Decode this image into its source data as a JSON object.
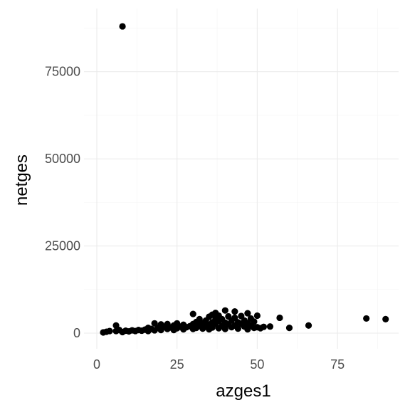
{
  "chart_data": {
    "type": "scatter",
    "title": "",
    "xlabel": "azges1",
    "ylabel": "netges",
    "xlim": [
      0,
      90
    ],
    "ylim": [
      0,
      88000
    ],
    "x_ticks": [
      0,
      25,
      50,
      75
    ],
    "y_ticks": [
      0,
      25000,
      50000,
      75000
    ],
    "x_tick_labels": [
      "0",
      "25",
      "50",
      "75"
    ],
    "y_tick_labels": [
      "0",
      "25000",
      "50000",
      "75000"
    ],
    "grid": true,
    "legend": "none",
    "point_color": "#000000",
    "points": [
      {
        "x": 8,
        "y": 88000
      },
      {
        "x": 2,
        "y": 200
      },
      {
        "x": 3,
        "y": 400
      },
      {
        "x": 4,
        "y": 600
      },
      {
        "x": 6,
        "y": 2200
      },
      {
        "x": 6,
        "y": 600
      },
      {
        "x": 7,
        "y": 900
      },
      {
        "x": 8,
        "y": 300
      },
      {
        "x": 9,
        "y": 700
      },
      {
        "x": 10,
        "y": 500
      },
      {
        "x": 11,
        "y": 800
      },
      {
        "x": 12,
        "y": 600
      },
      {
        "x": 13,
        "y": 900
      },
      {
        "x": 14,
        "y": 700
      },
      {
        "x": 15,
        "y": 1000
      },
      {
        "x": 16,
        "y": 1500
      },
      {
        "x": 16,
        "y": 600
      },
      {
        "x": 17,
        "y": 1200
      },
      {
        "x": 18,
        "y": 2800
      },
      {
        "x": 18,
        "y": 800
      },
      {
        "x": 19,
        "y": 1500
      },
      {
        "x": 20,
        "y": 2500
      },
      {
        "x": 20,
        "y": 900
      },
      {
        "x": 21,
        "y": 1800
      },
      {
        "x": 22,
        "y": 1200
      },
      {
        "x": 22,
        "y": 2600
      },
      {
        "x": 23,
        "y": 1600
      },
      {
        "x": 24,
        "y": 2200
      },
      {
        "x": 24,
        "y": 900
      },
      {
        "x": 25,
        "y": 1400
      },
      {
        "x": 25,
        "y": 2800
      },
      {
        "x": 26,
        "y": 1800
      },
      {
        "x": 27,
        "y": 1100
      },
      {
        "x": 27,
        "y": 2400
      },
      {
        "x": 28,
        "y": 1700
      },
      {
        "x": 29,
        "y": 2000
      },
      {
        "x": 30,
        "y": 5500
      },
      {
        "x": 30,
        "y": 1200
      },
      {
        "x": 30,
        "y": 2600
      },
      {
        "x": 31,
        "y": 3200
      },
      {
        "x": 31,
        "y": 1500
      },
      {
        "x": 32,
        "y": 2200
      },
      {
        "x": 32,
        "y": 4000
      },
      {
        "x": 33,
        "y": 1300
      },
      {
        "x": 33,
        "y": 2900
      },
      {
        "x": 34,
        "y": 3600
      },
      {
        "x": 34,
        "y": 1800
      },
      {
        "x": 35,
        "y": 2400
      },
      {
        "x": 35,
        "y": 4700
      },
      {
        "x": 35,
        "y": 1100
      },
      {
        "x": 36,
        "y": 3100
      },
      {
        "x": 36,
        "y": 5300
      },
      {
        "x": 36,
        "y": 1600
      },
      {
        "x": 37,
        "y": 2700
      },
      {
        "x": 37,
        "y": 4300
      },
      {
        "x": 37,
        "y": 5800
      },
      {
        "x": 38,
        "y": 1400
      },
      {
        "x": 38,
        "y": 3500
      },
      {
        "x": 38,
        "y": 5000
      },
      {
        "x": 39,
        "y": 2100
      },
      {
        "x": 39,
        "y": 4000
      },
      {
        "x": 40,
        "y": 6500
      },
      {
        "x": 40,
        "y": 1200
      },
      {
        "x": 40,
        "y": 3000
      },
      {
        "x": 41,
        "y": 2500
      },
      {
        "x": 41,
        "y": 4800
      },
      {
        "x": 42,
        "y": 1700
      },
      {
        "x": 42,
        "y": 3600
      },
      {
        "x": 43,
        "y": 6200
      },
      {
        "x": 43,
        "y": 2200
      },
      {
        "x": 43,
        "y": 4400
      },
      {
        "x": 44,
        "y": 1300
      },
      {
        "x": 44,
        "y": 3100
      },
      {
        "x": 45,
        "y": 2700
      },
      {
        "x": 45,
        "y": 4900
      },
      {
        "x": 46,
        "y": 1900
      },
      {
        "x": 46,
        "y": 3600
      },
      {
        "x": 47,
        "y": 5700
      },
      {
        "x": 47,
        "y": 1100
      },
      {
        "x": 47,
        "y": 2900
      },
      {
        "x": 48,
        "y": 4200
      },
      {
        "x": 48,
        "y": 2200
      },
      {
        "x": 49,
        "y": 1500
      },
      {
        "x": 49,
        "y": 3300
      },
      {
        "x": 50,
        "y": 5000
      },
      {
        "x": 50,
        "y": 1700
      },
      {
        "x": 51,
        "y": 1400
      },
      {
        "x": 52,
        "y": 1800
      },
      {
        "x": 54,
        "y": 1900
      },
      {
        "x": 57,
        "y": 4400
      },
      {
        "x": 60,
        "y": 1500
      },
      {
        "x": 66,
        "y": 2200
      },
      {
        "x": 84,
        "y": 4200
      },
      {
        "x": 90,
        "y": 4000
      }
    ]
  }
}
